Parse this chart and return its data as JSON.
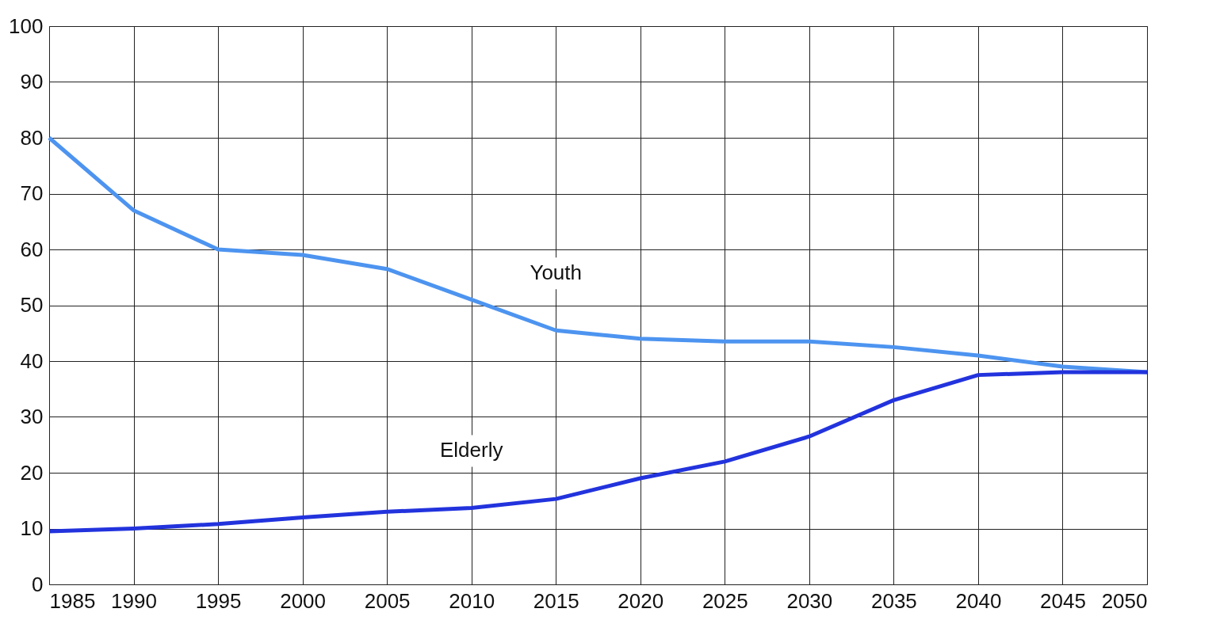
{
  "chart_data": {
    "type": "line",
    "x": [
      1985,
      1990,
      1995,
      2000,
      2005,
      2010,
      2015,
      2020,
      2025,
      2030,
      2035,
      2040,
      2045,
      2050
    ],
    "series": [
      {
        "name": "Youth",
        "color": "#4d94f0",
        "values": [
          80,
          67,
          60,
          59,
          56.5,
          51,
          45.5,
          44,
          43.5,
          43.5,
          42.5,
          41,
          39,
          38
        ]
      },
      {
        "name": "Elderly",
        "color": "#2233dd",
        "values": [
          9.5,
          10,
          10.8,
          12,
          13,
          13.7,
          15.3,
          19,
          22,
          26.5,
          33,
          37.5,
          38,
          38
        ]
      }
    ],
    "xlim": [
      1985,
      2050
    ],
    "xticks": [
      1985,
      1990,
      1995,
      2000,
      2005,
      2010,
      2015,
      2020,
      2025,
      2030,
      2035,
      2040,
      2045,
      2050
    ],
    "ylim": [
      0,
      100
    ],
    "yticks": [
      0,
      10,
      20,
      30,
      40,
      50,
      60,
      70,
      80,
      90,
      100
    ],
    "grid": true,
    "legend": false,
    "marker": "none",
    "line_style": "solid"
  }
}
